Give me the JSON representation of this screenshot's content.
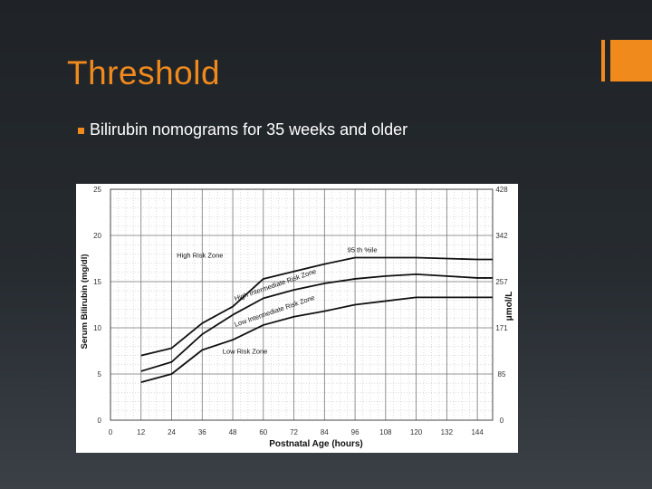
{
  "slide": {
    "title": "Threshold",
    "bullet": "Bilirubin nomograms for 35 weeks and older",
    "accent_color": "#f08a1c"
  },
  "chart_data": {
    "type": "line",
    "xlabel": "Postnatal Age (hours)",
    "ylabel": "Serum Bilirubin (mg/dl)",
    "ylabel_right": "μmol/L",
    "x_ticks": [
      0,
      12,
      24,
      36,
      48,
      60,
      72,
      84,
      96,
      108,
      120,
      132,
      144
    ],
    "y_ticks": [
      0,
      5,
      10,
      15,
      20,
      25
    ],
    "y_right_ticks": [
      0,
      85,
      171,
      257,
      342,
      428
    ],
    "xlim": [
      0,
      150
    ],
    "ylim": [
      0,
      25
    ],
    "grid": true,
    "series": [
      {
        "name": "95th %ile",
        "x": [
          12,
          24,
          36,
          48,
          60,
          72,
          84,
          96,
          108,
          120,
          132,
          144,
          150
        ],
        "y": [
          7,
          7.8,
          10.5,
          12.3,
          15.3,
          16.1,
          16.9,
          17.6,
          17.6,
          17.6,
          17.5,
          17.4,
          17.4
        ]
      },
      {
        "name": "",
        "x": [
          12,
          24,
          36,
          48,
          60,
          72,
          84,
          96,
          108,
          120,
          132,
          144,
          150
        ],
        "y": [
          5.3,
          6.3,
          9.3,
          11.4,
          13.2,
          14.1,
          14.8,
          15.3,
          15.6,
          15.8,
          15.6,
          15.4,
          15.4
        ]
      },
      {
        "name": "",
        "x": [
          12,
          24,
          36,
          48,
          60,
          72,
          84,
          96,
          108,
          120,
          132,
          144,
          150
        ],
        "y": [
          4.1,
          5.0,
          7.6,
          8.7,
          10.3,
          11.2,
          11.8,
          12.5,
          12.9,
          13.3,
          13.3,
          13.3,
          13.3
        ]
      }
    ],
    "annotations": [
      {
        "text": "High Risk Zone",
        "x": 26,
        "y": 17.6,
        "rotate": 0
      },
      {
        "text": "95 th %ile",
        "x": 93,
        "y": 18.2,
        "rotate": 0
      },
      {
        "text": "High Intermediate Risk Zone",
        "x": 49,
        "y": 12.9,
        "rotate": -19
      },
      {
        "text": "Low Intermediate Risk Zone",
        "x": 49,
        "y": 10.1,
        "rotate": -19
      },
      {
        "text": "Low Risk Zone",
        "x": 44,
        "y": 7.2,
        "rotate": 0
      }
    ]
  }
}
